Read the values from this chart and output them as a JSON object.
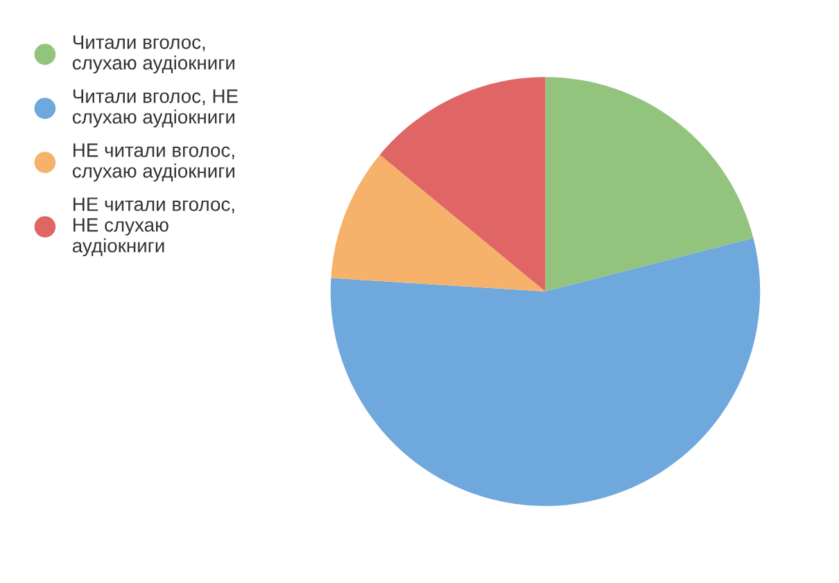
{
  "chart_data": {
    "type": "pie",
    "categories": [
      "Читали вголос,\nслухаю аудіокниги",
      "Читали вголос, НЕ\nслухаю аудіокниги",
      "НЕ читали вголос,\nслухаю аудіокниги",
      "НЕ читали вголос,\nНЕ слухаю\nаудіокниги"
    ],
    "values": [
      21,
      55,
      10,
      14
    ],
    "colors": [
      "#93c47d",
      "#6fa8dc",
      "#f6b26b",
      "#e06666"
    ],
    "legend": "top left"
  }
}
